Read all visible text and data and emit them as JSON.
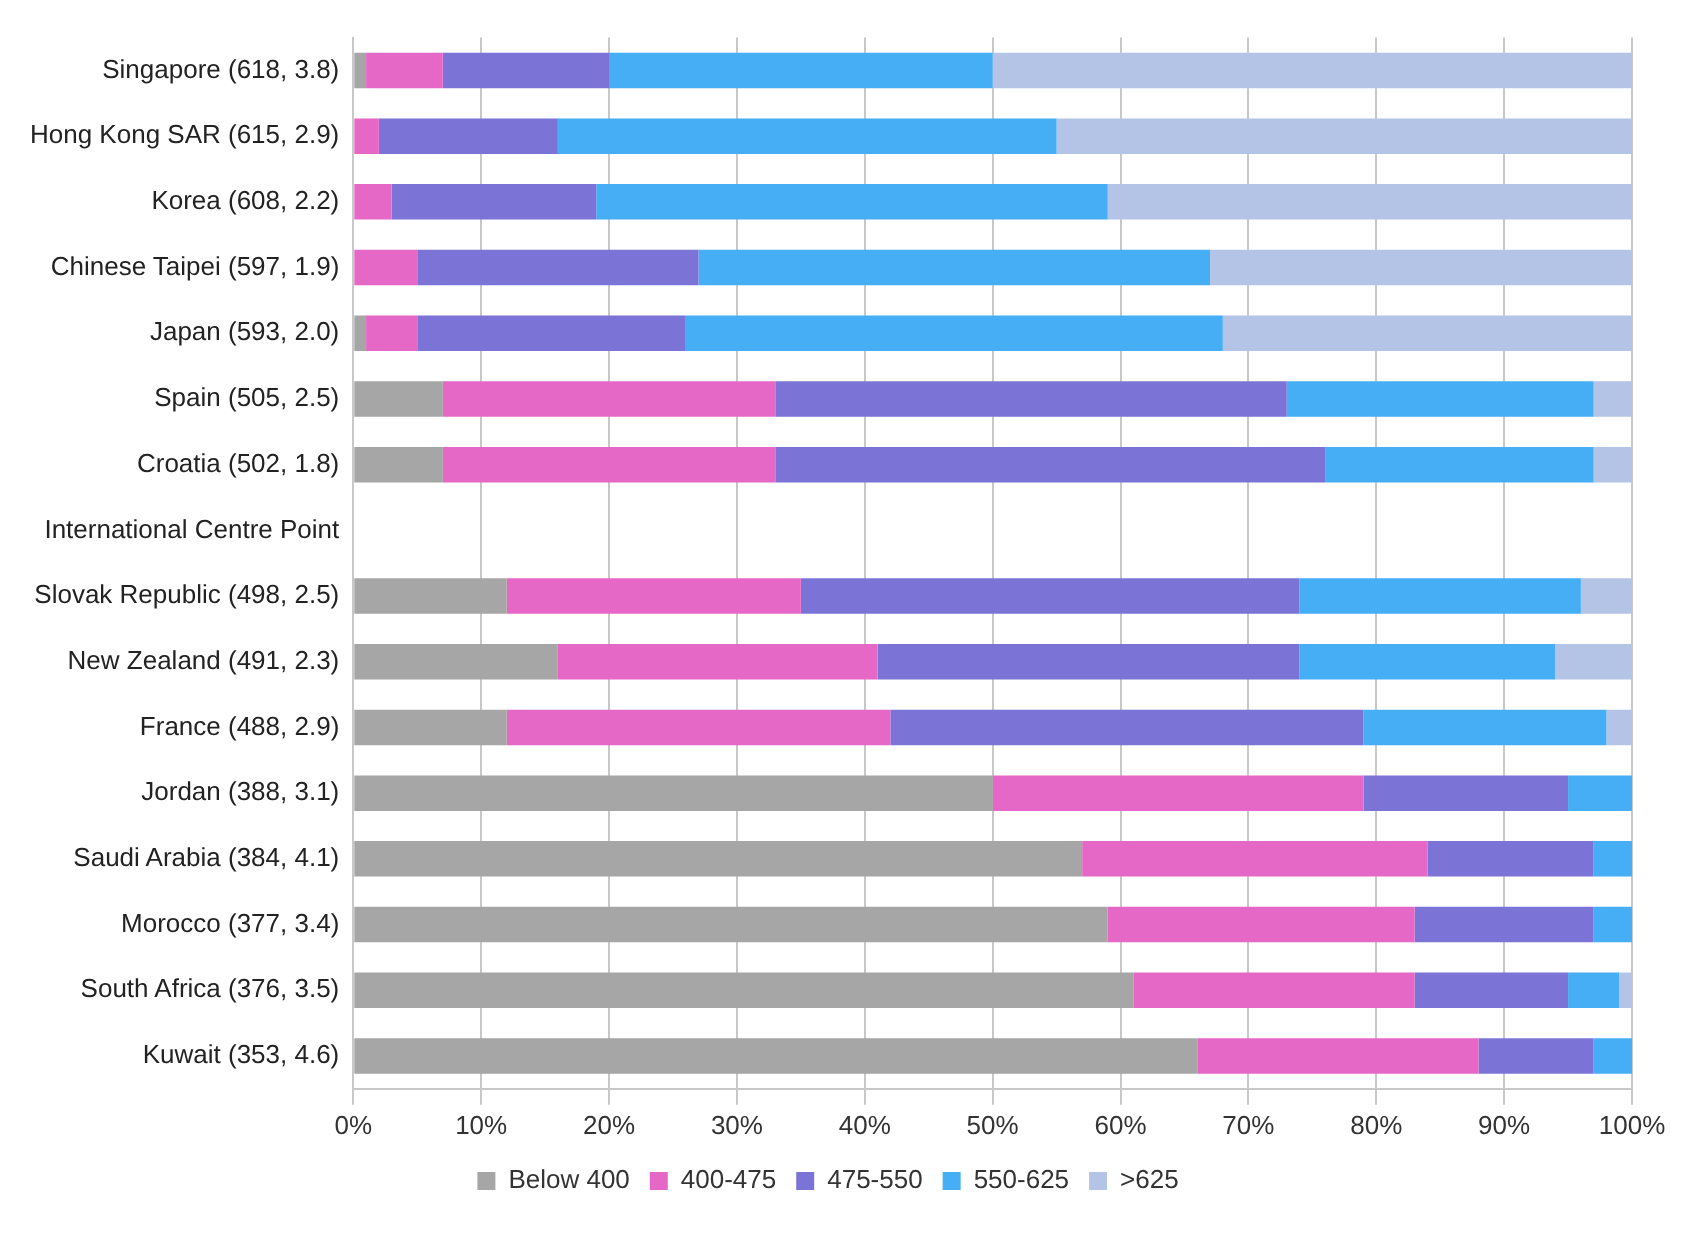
{
  "chart_data": {
    "type": "bar",
    "orientation": "horizontal",
    "stacked": true,
    "categories": [
      "Singapore (618, 3.8)",
      "Hong Kong SAR (615, 2.9)",
      "Korea (608, 2.2)",
      "Chinese Taipei (597, 1.9)",
      "Japan (593, 2.0)",
      "Spain (505, 2.5)",
      "Croatia (502, 1.8)",
      "International Centre Point",
      "Slovak Republic (498, 2.5)",
      "New Zealand (491, 2.3)",
      "France (488, 2.9)",
      "Jordan (388, 3.1)",
      "Saudi Arabia (384, 4.1)",
      "Morocco (377, 3.4)",
      "South Africa (376, 3.5)",
      "Kuwait (353, 4.6)"
    ],
    "series": [
      {
        "name": "Below 400",
        "color": "#a6a6a6",
        "values": [
          1,
          0,
          0,
          0,
          1,
          7,
          7,
          null,
          12,
          16,
          12,
          50,
          57,
          59,
          61,
          66
        ]
      },
      {
        "name": "400-475",
        "color": "#e668c6",
        "values": [
          6,
          2,
          3,
          5,
          4,
          26,
          26,
          null,
          23,
          25,
          30,
          29,
          27,
          24,
          22,
          22
        ]
      },
      {
        "name": "475-550",
        "color": "#7b74d6",
        "values": [
          13,
          14,
          16,
          22,
          21,
          40,
          43,
          null,
          39,
          33,
          37,
          16,
          13,
          14,
          12,
          9
        ]
      },
      {
        "name": "550-625",
        "color": "#45aef5",
        "values": [
          30,
          39,
          40,
          40,
          42,
          24,
          21,
          null,
          22,
          20,
          19,
          5,
          3,
          3,
          4,
          3
        ]
      },
      {
        "name": ">625",
        "color": "#b4c4e6",
        "values": [
          50,
          45,
          41,
          33,
          32,
          3,
          3,
          null,
          4,
          6,
          2,
          0,
          0,
          0,
          1,
          0
        ]
      }
    ],
    "xlim": [
      0,
      100
    ],
    "xticks": [
      {
        "value": 0,
        "label": "0%"
      },
      {
        "value": 10,
        "label": "10%"
      },
      {
        "value": 20,
        "label": "20%"
      },
      {
        "value": 30,
        "label": "30%"
      },
      {
        "value": 40,
        "label": "40%"
      },
      {
        "value": 50,
        "label": "50%"
      },
      {
        "value": 60,
        "label": "60%"
      },
      {
        "value": 70,
        "label": "70%"
      },
      {
        "value": 80,
        "label": "80%"
      },
      {
        "value": 90,
        "label": "90%"
      },
      {
        "value": 100,
        "label": "100%"
      }
    ],
    "grid": "x",
    "legend": "bottom"
  }
}
